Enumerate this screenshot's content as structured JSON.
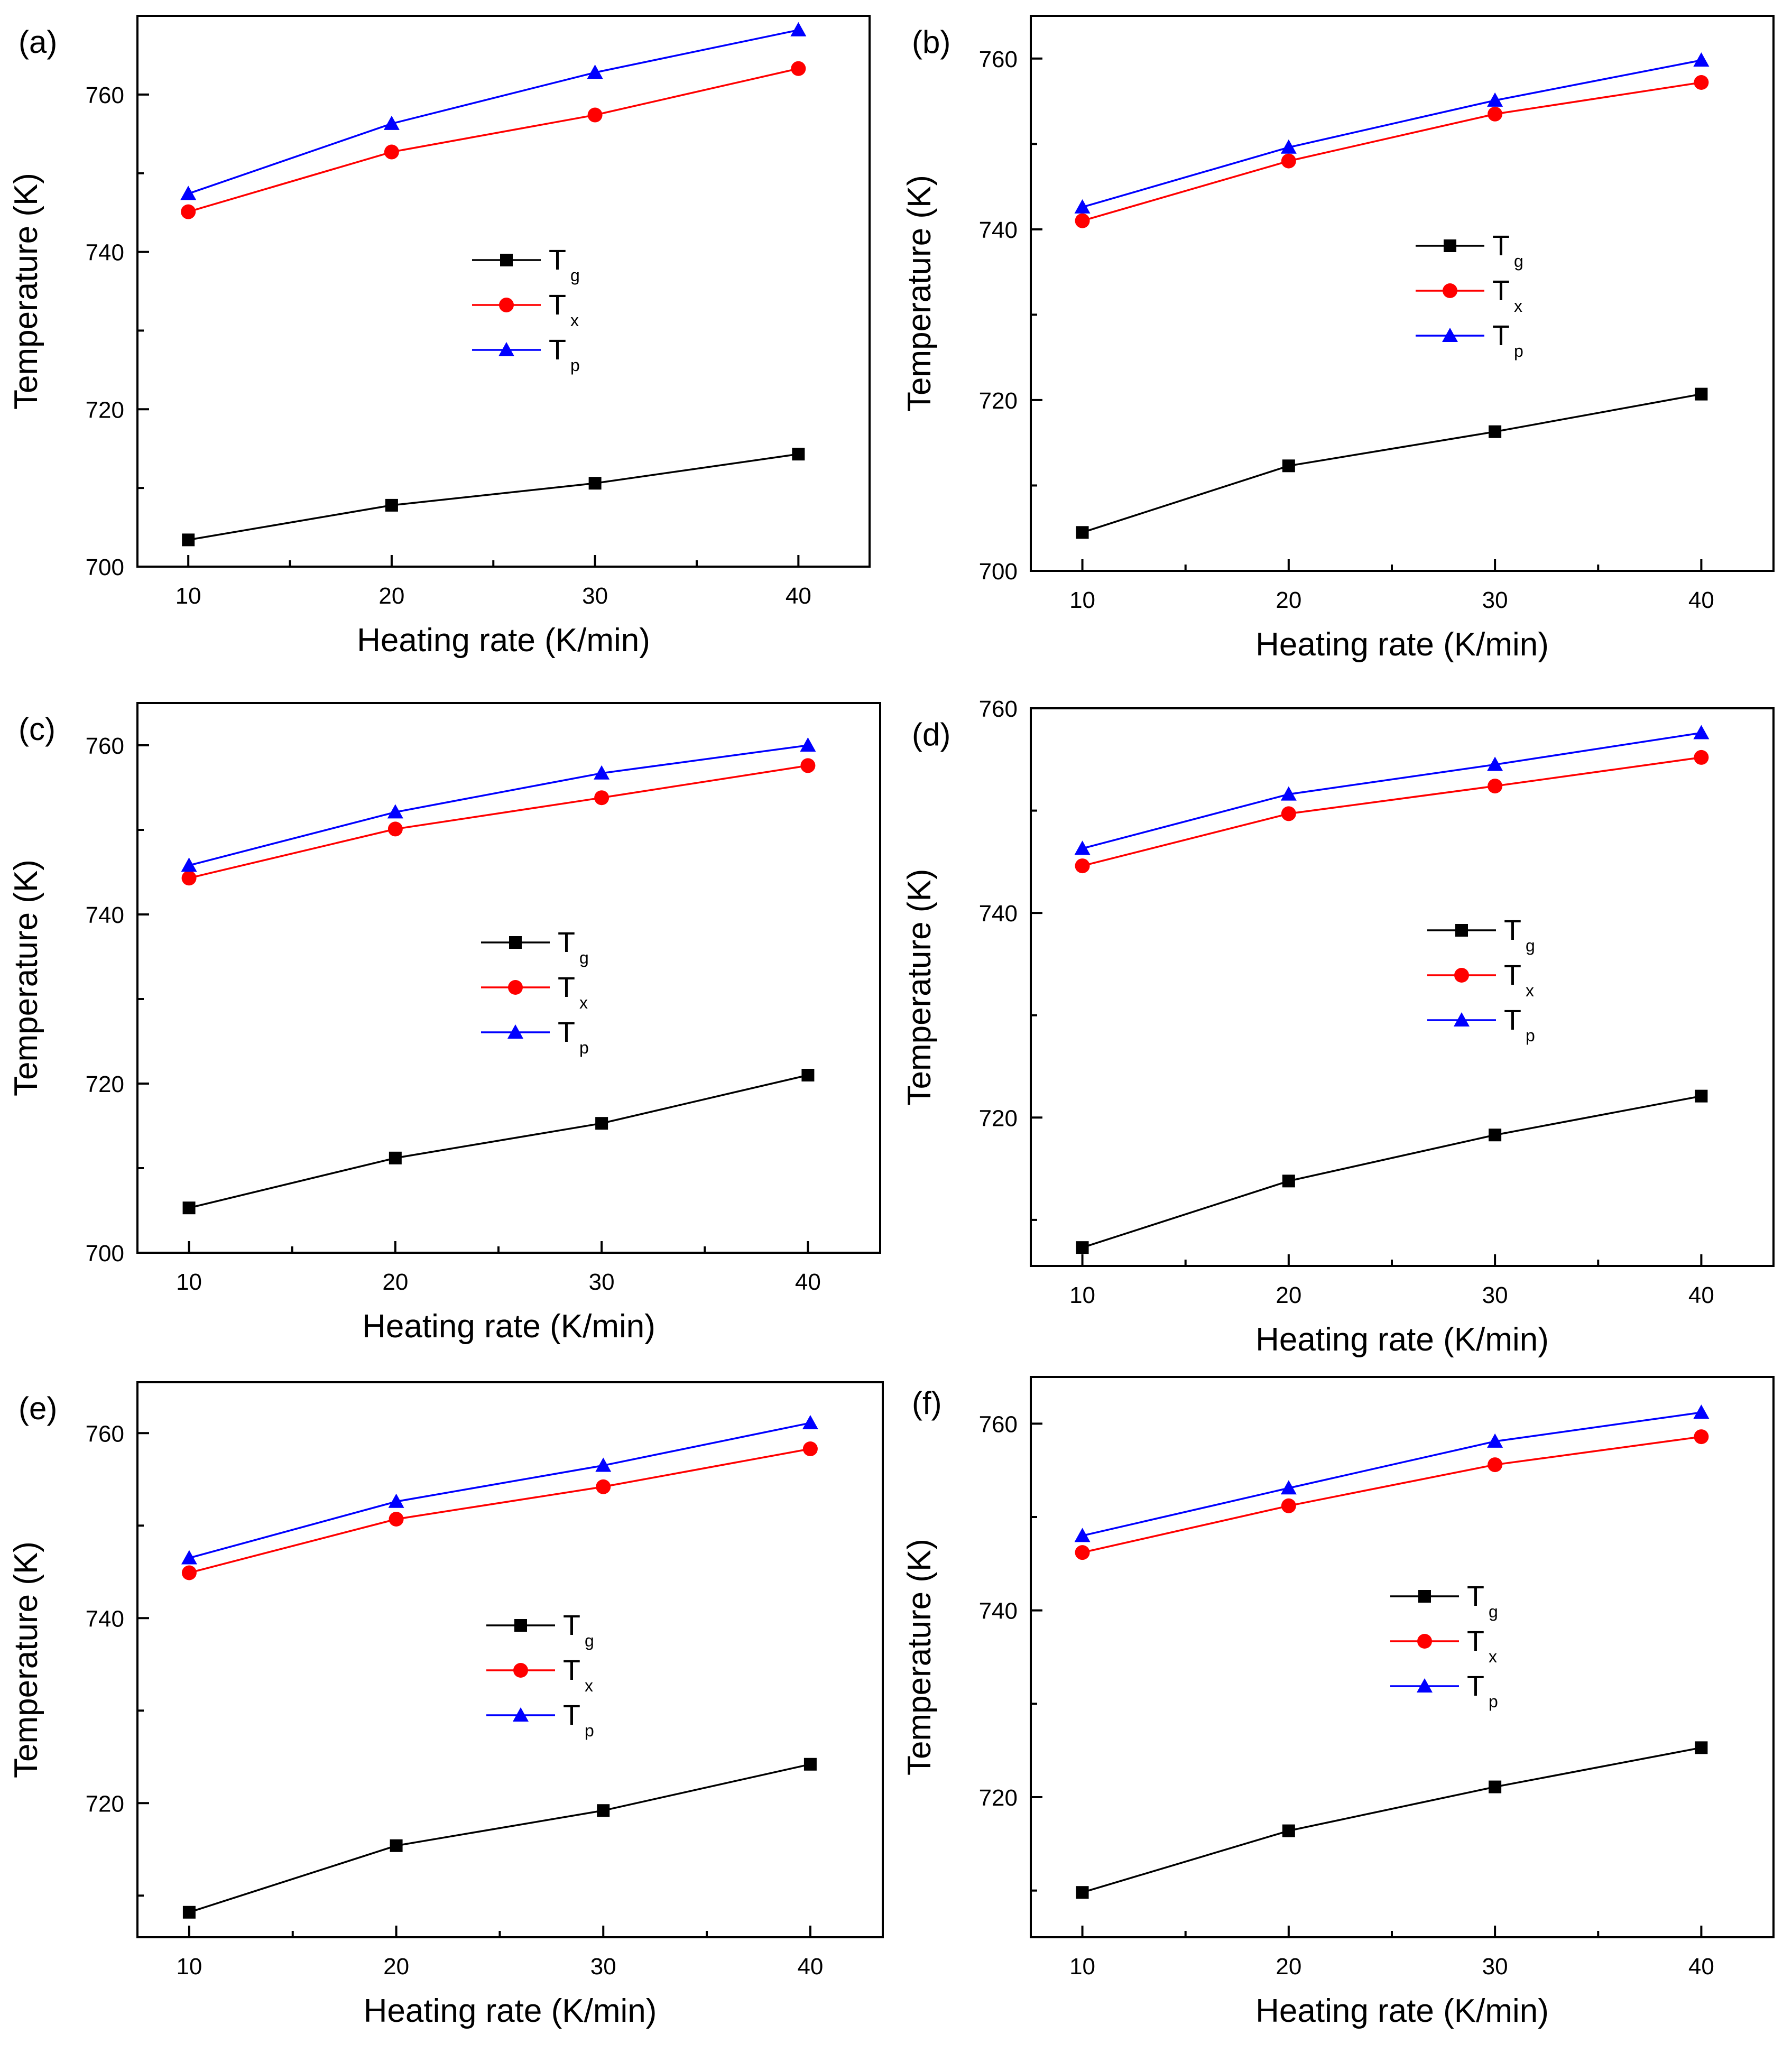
{
  "figure": {
    "description_label": "Six-panel figure: temperature vs heating rate"
  },
  "colors": {
    "Tg": "#000000",
    "Tx": "#ff0000",
    "Tp": "#0000ff",
    "axis": "#000000",
    "background": "#ffffff"
  },
  "chart_data": [
    {
      "panel_label": "(a)",
      "type": "line",
      "xlabel": "Heating rate (K/min)",
      "ylabel": "Temperature (K)",
      "xlim": [
        7.5,
        43.5
      ],
      "ylim": [
        700,
        770
      ],
      "xticks": [
        10,
        20,
        30,
        40
      ],
      "yticks": [
        700,
        720,
        740,
        760
      ],
      "legend": {
        "placement": "center"
      },
      "x": [
        10,
        20,
        30,
        40
      ],
      "series": [
        {
          "name": "Tg",
          "base": "T",
          "sub": "g",
          "marker": "square",
          "color_key": "Tg",
          "values": [
            703.4,
            707.8,
            710.6,
            714.3
          ]
        },
        {
          "name": "Tx",
          "base": "T",
          "sub": "x",
          "marker": "circle",
          "color_key": "Tx",
          "values": [
            745.1,
            752.7,
            757.4,
            763.3
          ]
        },
        {
          "name": "Tp",
          "base": "T",
          "sub": "p",
          "marker": "triangle",
          "color_key": "Tp",
          "values": [
            747.4,
            756.3,
            762.8,
            768.2
          ]
        }
      ]
    },
    {
      "panel_label": "(b)",
      "type": "line",
      "xlabel": "Heating rate (K/min)",
      "ylabel": "Temperature (K)",
      "xlim": [
        7.5,
        43.5
      ],
      "ylim": [
        700,
        765
      ],
      "xticks": [
        10,
        20,
        30,
        40
      ],
      "yticks": [
        700,
        720,
        740,
        760
      ],
      "legend": {
        "placement": "center"
      },
      "x": [
        10,
        20,
        30,
        40
      ],
      "series": [
        {
          "name": "Tg",
          "base": "T",
          "sub": "g",
          "marker": "square",
          "color_key": "Tg",
          "values": [
            704.5,
            712.3,
            716.3,
            720.7
          ]
        },
        {
          "name": "Tx",
          "base": "T",
          "sub": "x",
          "marker": "circle",
          "color_key": "Tx",
          "values": [
            741.0,
            748.0,
            753.5,
            757.2
          ]
        },
        {
          "name": "Tp",
          "base": "T",
          "sub": "p",
          "marker": "triangle",
          "color_key": "Tp",
          "values": [
            742.6,
            749.6,
            755.1,
            759.8
          ]
        }
      ]
    },
    {
      "panel_label": "(c)",
      "type": "line",
      "xlabel": "Heating rate (K/min)",
      "ylabel": "Temperature (K)",
      "xlim": [
        7.5,
        43.5
      ],
      "ylim": [
        700,
        765
      ],
      "xticks": [
        10,
        20,
        30,
        40
      ],
      "yticks": [
        700,
        720,
        740,
        760
      ],
      "legend": {
        "placement": "center"
      },
      "x": [
        10,
        20,
        30,
        40
      ],
      "series": [
        {
          "name": "Tg",
          "base": "T",
          "sub": "g",
          "marker": "square",
          "color_key": "Tg",
          "values": [
            705.3,
            711.2,
            715.3,
            721.0
          ]
        },
        {
          "name": "Tx",
          "base": "T",
          "sub": "x",
          "marker": "circle",
          "color_key": "Tx",
          "values": [
            744.3,
            750.1,
            753.8,
            757.6
          ]
        },
        {
          "name": "Tp",
          "base": "T",
          "sub": "p",
          "marker": "triangle",
          "color_key": "Tp",
          "values": [
            745.8,
            752.1,
            756.7,
            760.0
          ]
        }
      ]
    },
    {
      "panel_label": "(d)",
      "type": "line",
      "xlabel": "Heating rate (K/min)",
      "ylabel": "Temperature (K)",
      "xlim": [
        7.5,
        43.5
      ],
      "ylim": [
        705.5,
        760
      ],
      "xticks": [
        10,
        20,
        30,
        40
      ],
      "yticks": [
        720,
        740,
        760
      ],
      "legend": {
        "placement": "center"
      },
      "x": [
        10,
        20,
        30,
        40
      ],
      "series": [
        {
          "name": "Tg",
          "base": "T",
          "sub": "g",
          "marker": "square",
          "color_key": "Tg",
          "values": [
            707.3,
            713.8,
            718.3,
            722.1
          ]
        },
        {
          "name": "Tx",
          "base": "T",
          "sub": "x",
          "marker": "circle",
          "color_key": "Tx",
          "values": [
            744.6,
            749.7,
            752.4,
            755.2
          ]
        },
        {
          "name": "Tp",
          "base": "T",
          "sub": "p",
          "marker": "triangle",
          "color_key": "Tp",
          "values": [
            746.3,
            751.6,
            754.5,
            757.6
          ]
        }
      ]
    },
    {
      "panel_label": "(e)",
      "type": "line",
      "xlabel": "Heating rate (K/min)",
      "ylabel": "Temperature (K)",
      "xlim": [
        7.5,
        43.5
      ],
      "ylim": [
        705.5,
        765.5
      ],
      "xticks": [
        10,
        20,
        30,
        40
      ],
      "yticks": [
        720,
        740,
        760
      ],
      "legend": {
        "placement": "center"
      },
      "x": [
        10,
        20,
        30,
        40
      ],
      "series": [
        {
          "name": "Tg",
          "base": "T",
          "sub": "g",
          "marker": "square",
          "color_key": "Tg",
          "values": [
            708.2,
            715.4,
            719.2,
            724.2
          ]
        },
        {
          "name": "Tx",
          "base": "T",
          "sub": "x",
          "marker": "circle",
          "color_key": "Tx",
          "values": [
            744.9,
            750.7,
            754.2,
            758.3
          ]
        },
        {
          "name": "Tp",
          "base": "T",
          "sub": "p",
          "marker": "triangle",
          "color_key": "Tp",
          "values": [
            746.5,
            752.6,
            756.5,
            761.1
          ]
        }
      ]
    },
    {
      "panel_label": "(f)",
      "type": "line",
      "xlabel": "Heating rate (K/min)",
      "ylabel": "Temperature (K)",
      "xlim": [
        7.5,
        43.5
      ],
      "ylim": [
        705,
        765
      ],
      "xticks": [
        10,
        20,
        30,
        40
      ],
      "yticks": [
        720,
        740,
        760
      ],
      "legend": {
        "placement": "center"
      },
      "x": [
        10,
        20,
        30,
        40
      ],
      "series": [
        {
          "name": "Tg",
          "base": "T",
          "sub": "g",
          "marker": "square",
          "color_key": "Tg",
          "values": [
            709.8,
            716.4,
            721.1,
            725.3
          ]
        },
        {
          "name": "Tx",
          "base": "T",
          "sub": "x",
          "marker": "circle",
          "color_key": "Tx",
          "values": [
            746.2,
            751.2,
            755.6,
            758.6
          ]
        },
        {
          "name": "Tp",
          "base": "T",
          "sub": "p",
          "marker": "triangle",
          "color_key": "Tp",
          "values": [
            748.0,
            753.1,
            758.1,
            761.2
          ]
        }
      ]
    }
  ]
}
